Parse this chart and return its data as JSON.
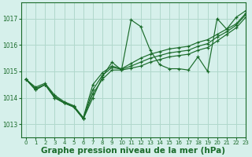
{
  "background_color": "#d6f0eb",
  "grid_color": "#b0d8cc",
  "line_color": "#1a6b2a",
  "marker_color": "#1a6b2a",
  "xlabel": "Graphe pression niveau de la mer (hPa)",
  "xlabel_fontsize": 7.5,
  "xlim": [
    -0.5,
    23
  ],
  "ylim": [
    1012.5,
    1017.6
  ],
  "yticks": [
    1013,
    1014,
    1015,
    1016,
    1017
  ],
  "xticks": [
    0,
    1,
    2,
    3,
    4,
    5,
    6,
    7,
    8,
    9,
    10,
    11,
    12,
    13,
    14,
    15,
    16,
    17,
    18,
    19,
    20,
    21,
    22,
    23
  ],
  "series": [
    [
      1014.7,
      1014.3,
      1014.5,
      1014.0,
      1013.8,
      1013.65,
      1013.2,
      1014.0,
      1014.8,
      1015.35,
      1015.05,
      1016.95,
      1016.7,
      1015.8,
      1015.25,
      1015.1,
      1015.1,
      1015.05,
      1015.55,
      1015.0,
      1017.0,
      1016.6,
      1017.05,
      1017.3
    ],
    [
      1014.7,
      1014.4,
      1014.55,
      1014.1,
      1013.85,
      1013.7,
      1013.25,
      1014.5,
      1014.95,
      1015.2,
      1015.1,
      1015.3,
      1015.5,
      1015.65,
      1015.75,
      1015.85,
      1015.9,
      1015.95,
      1016.1,
      1016.2,
      1016.4,
      1016.6,
      1016.8,
      1017.2
    ],
    [
      1014.7,
      1014.35,
      1014.5,
      1014.05,
      1013.82,
      1013.67,
      1013.22,
      1014.3,
      1014.85,
      1015.15,
      1015.08,
      1015.2,
      1015.35,
      1015.5,
      1015.6,
      1015.7,
      1015.75,
      1015.8,
      1015.95,
      1016.05,
      1016.3,
      1016.5,
      1016.75,
      1017.15
    ],
    [
      1014.7,
      1014.3,
      1014.5,
      1014.0,
      1013.8,
      1013.65,
      1013.2,
      1014.15,
      1014.7,
      1015.05,
      1015.05,
      1015.12,
      1015.2,
      1015.35,
      1015.45,
      1015.55,
      1015.6,
      1015.65,
      1015.8,
      1015.9,
      1016.15,
      1016.4,
      1016.65,
      1017.05
    ]
  ]
}
